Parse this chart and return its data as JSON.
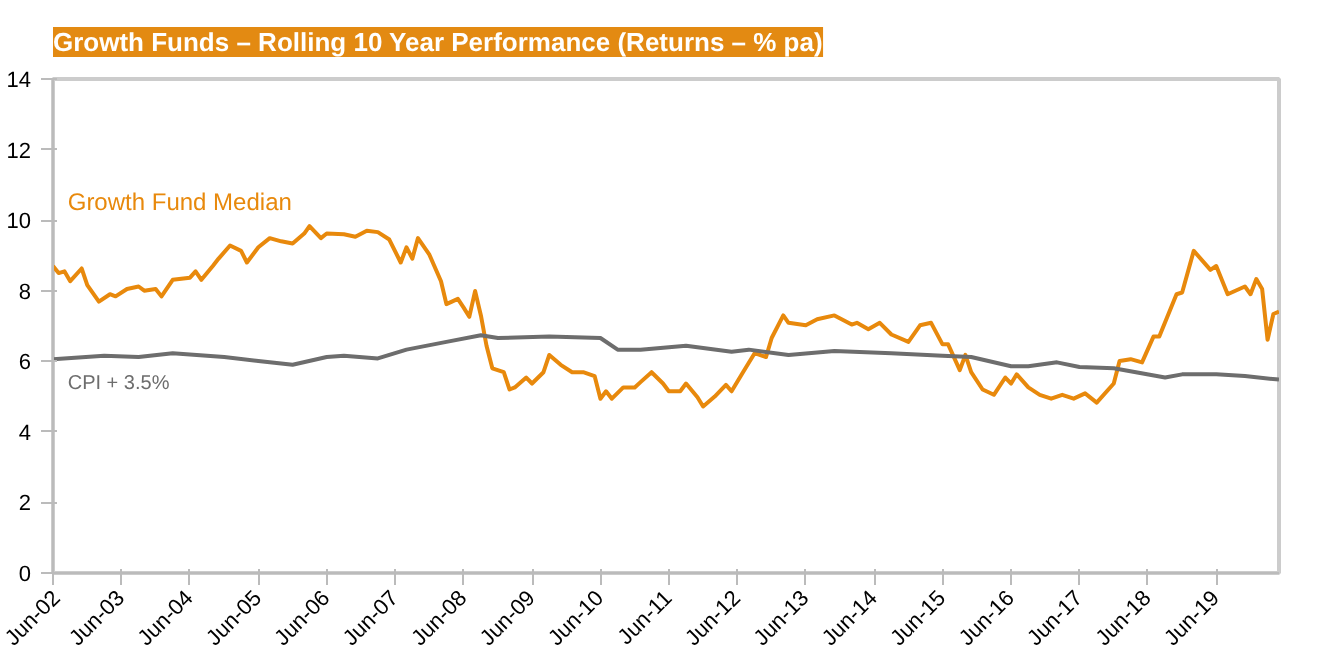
{
  "chart_data": {
    "type": "line",
    "title": "Growth Funds – Rolling 10 Year Performance (Returns – % pa)",
    "xlim": [
      "2002-06",
      "2020-05"
    ],
    "ylim": [
      0,
      14
    ],
    "yticks": [
      0,
      2,
      4,
      6,
      8,
      10,
      12,
      14
    ],
    "xticks": [
      {
        "value": "2002-06",
        "label": "Jun-02"
      },
      {
        "value": "2003-06",
        "label": "Jun-03"
      },
      {
        "value": "2004-06",
        "label": "Jun-04"
      },
      {
        "value": "2005-06",
        "label": "Jun-05"
      },
      {
        "value": "2006-06",
        "label": "Jun-06"
      },
      {
        "value": "2007-06",
        "label": "Jun-07"
      },
      {
        "value": "2008-06",
        "label": "Jun-08"
      },
      {
        "value": "2009-06",
        "label": "Jun-09"
      },
      {
        "value": "2010-06",
        "label": "Jun-10"
      },
      {
        "value": "2011-06",
        "label": "Jun-11"
      },
      {
        "value": "2012-06",
        "label": "Jun-12"
      },
      {
        "value": "2013-06",
        "label": "Jun-13"
      },
      {
        "value": "2014-06",
        "label": "Jun-14"
      },
      {
        "value": "2015-06",
        "label": "Jun-15"
      },
      {
        "value": "2016-06",
        "label": "Jun-16"
      },
      {
        "value": "2017-06",
        "label": "Jun-17"
      },
      {
        "value": "2018-06",
        "label": "Jun-18"
      },
      {
        "value": "2019-06",
        "label": "Jun-19"
      }
    ],
    "grid": false,
    "legend": false,
    "line_style": "solid",
    "marker": "none",
    "series": [
      {
        "name": "Growth Fund Median",
        "color": "#e8890c",
        "x": [
          "2002-06",
          "2002-07",
          "2002-08",
          "2002-09",
          "2002-11",
          "2002-12",
          "2003-02",
          "2003-04",
          "2003-05",
          "2003-07",
          "2003-09",
          "2003-10",
          "2003-12",
          "2004-01",
          "2004-03",
          "2004-06",
          "2004-07",
          "2004-08",
          "2004-10",
          "2004-11",
          "2005-01",
          "2005-03",
          "2005-04",
          "2005-06",
          "2005-08",
          "2005-10",
          "2005-12",
          "2006-02",
          "2006-03",
          "2006-05",
          "2006-06",
          "2006-09",
          "2006-11",
          "2007-01",
          "2007-03",
          "2007-05",
          "2007-07",
          "2007-08",
          "2007-09",
          "2007-10",
          "2007-12",
          "2008-02",
          "2008-03",
          "2008-05",
          "2008-06",
          "2008-07",
          "2008-08",
          "2008-09",
          "2008-10",
          "2008-11",
          "2009-01",
          "2009-02",
          "2009-03",
          "2009-05",
          "2009-06",
          "2009-08",
          "2009-09",
          "2009-11",
          "2010-01",
          "2010-03",
          "2010-05",
          "2010-06",
          "2010-07",
          "2010-08",
          "2010-10",
          "2010-12",
          "2011-01",
          "2011-03",
          "2011-05",
          "2011-06",
          "2011-08",
          "2011-09",
          "2011-11",
          "2011-12",
          "2012-02",
          "2012-04",
          "2012-05",
          "2012-07",
          "2012-09",
          "2012-11",
          "2012-12",
          "2013-02",
          "2013-03",
          "2013-06",
          "2013-08",
          "2013-11",
          "2014-02",
          "2014-03",
          "2014-05",
          "2014-07",
          "2014-09",
          "2014-12",
          "2015-02",
          "2015-04",
          "2015-06",
          "2015-07",
          "2015-09",
          "2015-10",
          "2015-11",
          "2016-01",
          "2016-03",
          "2016-05",
          "2016-06",
          "2016-07",
          "2016-09",
          "2016-11",
          "2017-01",
          "2017-03",
          "2017-05",
          "2017-07",
          "2017-09",
          "2017-12",
          "2018-01",
          "2018-03",
          "2018-05",
          "2018-07",
          "2018-08",
          "2018-11",
          "2018-12",
          "2019-02",
          "2019-05",
          "2019-06",
          "2019-08",
          "2019-11",
          "2019-12",
          "2020-01",
          "2020-02",
          "2020-03",
          "2020-04",
          "2020-05"
        ],
        "values": [
          8.7,
          8.5,
          8.55,
          8.27,
          8.63,
          8.16,
          7.69,
          7.9,
          7.84,
          8.05,
          8.12,
          8.0,
          8.05,
          7.84,
          8.31,
          8.37,
          8.55,
          8.31,
          8.7,
          8.91,
          9.28,
          9.13,
          8.8,
          9.23,
          9.49,
          9.4,
          9.34,
          9.62,
          9.83,
          9.49,
          9.62,
          9.6,
          9.53,
          9.7,
          9.66,
          9.45,
          8.8,
          9.23,
          8.91,
          9.49,
          9.02,
          8.27,
          7.62,
          7.77,
          7.52,
          7.26,
          7.99,
          7.3,
          6.44,
          5.8,
          5.69,
          5.2,
          5.26,
          5.54,
          5.37,
          5.69,
          6.18,
          5.9,
          5.69,
          5.69,
          5.58,
          4.94,
          5.15,
          4.94,
          5.26,
          5.26,
          5.41,
          5.69,
          5.37,
          5.15,
          5.15,
          5.37,
          4.98,
          4.72,
          5.0,
          5.33,
          5.15,
          5.69,
          6.23,
          6.12,
          6.66,
          7.3,
          7.09,
          7.02,
          7.19,
          7.3,
          7.04,
          7.09,
          6.91,
          7.09,
          6.76,
          6.55,
          7.02,
          7.09,
          6.48,
          6.48,
          5.75,
          6.18,
          5.69,
          5.2,
          5.05,
          5.54,
          5.37,
          5.63,
          5.26,
          5.05,
          4.94,
          5.05,
          4.94,
          5.09,
          4.83,
          5.37,
          6.01,
          6.06,
          5.97,
          6.7,
          6.7,
          7.9,
          7.95,
          9.13,
          8.59,
          8.7,
          7.9,
          8.12,
          7.9,
          8.33,
          8.05,
          6.61,
          7.34,
          7.41
        ]
      },
      {
        "name": "CPI + 3.5%",
        "color": "#6d6d6d",
        "x": [
          "2002-06",
          "2003-03",
          "2003-09",
          "2004-03",
          "2004-12",
          "2005-06",
          "2005-12",
          "2006-06",
          "2006-09",
          "2007-03",
          "2007-08",
          "2008-03",
          "2008-09",
          "2008-12",
          "2009-09",
          "2010-06",
          "2010-09",
          "2011-01",
          "2011-09",
          "2012-05",
          "2012-08",
          "2013-03",
          "2013-11",
          "2014-09",
          "2015-06",
          "2015-11",
          "2016-06",
          "2016-09",
          "2017-02",
          "2017-06",
          "2017-12",
          "2018-09",
          "2018-12",
          "2019-06",
          "2019-11",
          "2020-05"
        ],
        "values": [
          6.06,
          6.16,
          6.12,
          6.23,
          6.12,
          6.01,
          5.9,
          6.12,
          6.16,
          6.08,
          6.33,
          6.55,
          6.74,
          6.66,
          6.7,
          6.66,
          6.33,
          6.33,
          6.44,
          6.27,
          6.33,
          6.18,
          6.29,
          6.23,
          6.16,
          6.12,
          5.86,
          5.86,
          5.97,
          5.84,
          5.8,
          5.54,
          5.63,
          5.63,
          5.58,
          5.48
        ]
      }
    ]
  }
}
